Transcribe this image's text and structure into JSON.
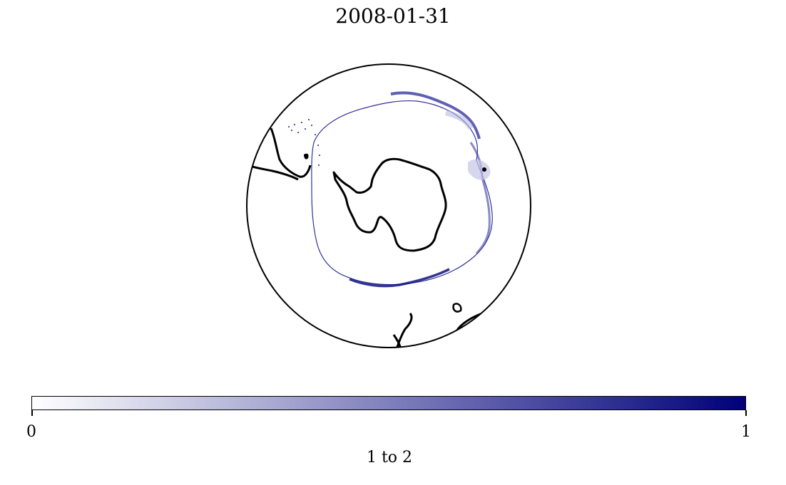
{
  "title": "2008-01-31",
  "colorbar": {
    "min_label": "0",
    "max_label": "1",
    "label": "1 to 2",
    "color_low": "#ffffff",
    "color_high": "#00007a"
  }
}
